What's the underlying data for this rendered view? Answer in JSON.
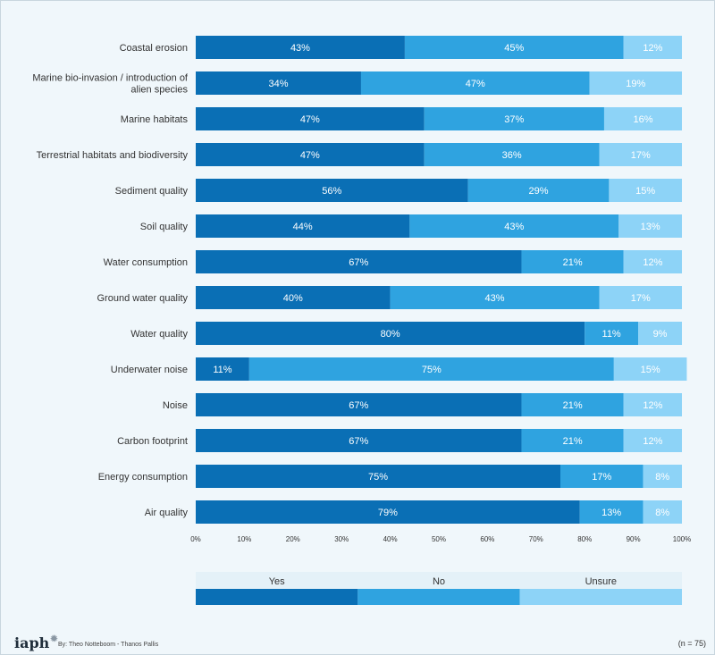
{
  "chart_data": {
    "type": "bar",
    "orientation": "horizontal",
    "stacked": true,
    "categories": [
      "Coastal erosion",
      "Marine bio-invasion / introduction of alien species",
      "Marine habitats",
      "Terrestrial habitats and biodiversity",
      "Sediment quality",
      "Soil quality",
      "Water consumption",
      "Ground water quality",
      "Water quality",
      "Underwater noise",
      "Noise",
      "Carbon footprint",
      "Energy consumption",
      "Air quality"
    ],
    "series": [
      {
        "name": "Yes",
        "color": "#0a6fb5",
        "values": [
          43,
          34,
          47,
          47,
          56,
          44,
          67,
          40,
          80,
          11,
          67,
          67,
          75,
          79
        ]
      },
      {
        "name": "No",
        "color": "#2fa3e0",
        "values": [
          45,
          47,
          37,
          36,
          29,
          43,
          21,
          43,
          11,
          75,
          21,
          21,
          17,
          13
        ]
      },
      {
        "name": "Unsure",
        "color": "#8dd3f7",
        "values": [
          12,
          19,
          16,
          17,
          15,
          13,
          12,
          17,
          9,
          15,
          12,
          12,
          8,
          8
        ]
      }
    ],
    "value_suffix": "%",
    "xlim": [
      0,
      100
    ],
    "x_ticks": [
      "0%",
      "10%",
      "20%",
      "30%",
      "40%",
      "50%",
      "60%",
      "70%",
      "80%",
      "90%",
      "100%"
    ],
    "legend_position": "bottom",
    "grid": false
  },
  "footer": {
    "logo": "iaph",
    "credit": "By: Theo Notteboom - Thanos Pallis",
    "sample": "(n = 75)"
  }
}
